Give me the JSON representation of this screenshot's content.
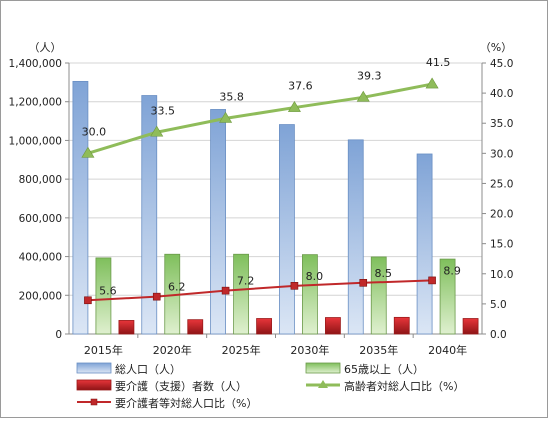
{
  "chart_data": {
    "type": "bar",
    "categories": [
      "2015年",
      "2020年",
      "2025年",
      "2030年",
      "2035年",
      "2040年"
    ],
    "left_axis": {
      "unit_label": "（人）",
      "range": [
        0,
        1400000
      ],
      "step": 200000,
      "ticks": [
        "0",
        "200,000",
        "400,000",
        "600,000",
        "800,000",
        "1,000,000",
        "1,200,000",
        "1,400,000"
      ]
    },
    "right_axis": {
      "unit_label": "（%）",
      "range": [
        0,
        45
      ],
      "step": 5,
      "ticks": [
        "0.0",
        "5.0",
        "10.0",
        "15.0",
        "20.0",
        "25.0",
        "30.0",
        "35.0",
        "40.0",
        "45.0"
      ]
    },
    "bar_series": [
      {
        "name": "総人口（人）",
        "axis": "left",
        "color": "#a9c4e6",
        "edge": "#6a8fc4",
        "values": [
          1305000,
          1232000,
          1160000,
          1082000,
          1003000,
          930000
        ]
      },
      {
        "name": "65歳以上（人）",
        "axis": "left",
        "color": "#a8d08a",
        "edge": "#6b9a4a",
        "values": [
          393000,
          412000,
          412000,
          410000,
          398000,
          387000
        ]
      },
      {
        "name": "要介護（支援）者数（人）",
        "axis": "left",
        "color": "#e03a3a",
        "edge": "#9a1a1a",
        "values": [
          70000,
          74000,
          80000,
          85000,
          86000,
          80000
        ]
      }
    ],
    "line_series": [
      {
        "name": "高齢者対総人口比（%）",
        "axis": "right",
        "color": "#8fbc5a",
        "marker": "triangle",
        "values": [
          30.0,
          33.5,
          35.8,
          37.6,
          39.3,
          41.5
        ],
        "labels": [
          "30.0",
          "33.5",
          "35.8",
          "37.6",
          "39.3",
          "41.5"
        ]
      },
      {
        "name": "要介護者等対総人口比（%）",
        "axis": "right",
        "color": "#c0282a",
        "marker": "square",
        "values": [
          5.6,
          6.2,
          7.2,
          8.0,
          8.5,
          8.9
        ],
        "labels": [
          "5.6",
          "6.2",
          "7.2",
          "8.0",
          "8.5",
          "8.9"
        ]
      }
    ],
    "legend": [
      {
        "label": "総人口（人）",
        "kind": "bar",
        "color": "#a9c4e6"
      },
      {
        "label": "65歳以上（人）",
        "kind": "bar",
        "color": "#a8d08a"
      },
      {
        "label": "要介護（支援）者数（人）",
        "kind": "bar",
        "color": "#e03a3a"
      },
      {
        "label": "高齢者対総人口比（%）",
        "kind": "line",
        "color": "#8fbc5a"
      },
      {
        "label": "要介護者等対総人口比（%）",
        "kind": "line",
        "color": "#c0282a"
      }
    ],
    "legend_position": "bottom",
    "grid": true
  }
}
